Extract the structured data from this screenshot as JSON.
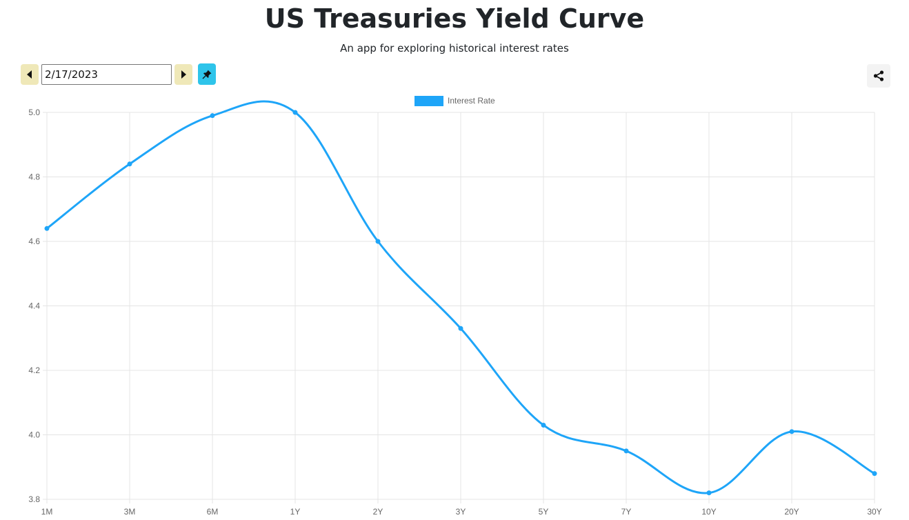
{
  "header": {
    "title": "US Treasuries Yield Curve",
    "subtitle": "An app for exploring historical interest rates"
  },
  "controls": {
    "date_value": "2/17/2023",
    "prev_icon": "triangle-left-icon",
    "next_icon": "triangle-right-icon",
    "pin_icon": "pushpin-icon",
    "share_icon": "share-icon"
  },
  "colors": {
    "line": "#1ea5f8",
    "nav_button": "#efe8b8",
    "pin_button": "#2ec4ea",
    "grid": "#e4e4e4",
    "tick_text": "#666666"
  },
  "chart_data": {
    "type": "line",
    "categories": [
      "1M",
      "3M",
      "6M",
      "1Y",
      "2Y",
      "3Y",
      "5Y",
      "7Y",
      "10Y",
      "20Y",
      "30Y"
    ],
    "series": [
      {
        "name": "Interest Rate",
        "values": [
          4.64,
          4.84,
          4.99,
          5.0,
          4.6,
          4.33,
          4.03,
          3.95,
          3.82,
          4.01,
          3.88
        ]
      }
    ],
    "y_ticks": [
      "5.0",
      "4.8",
      "4.6",
      "4.4",
      "4.2",
      "4.0",
      "3.8"
    ],
    "ylim": [
      3.8,
      5.0
    ],
    "grid": true,
    "legend": "top-center",
    "curve": "smooth"
  }
}
